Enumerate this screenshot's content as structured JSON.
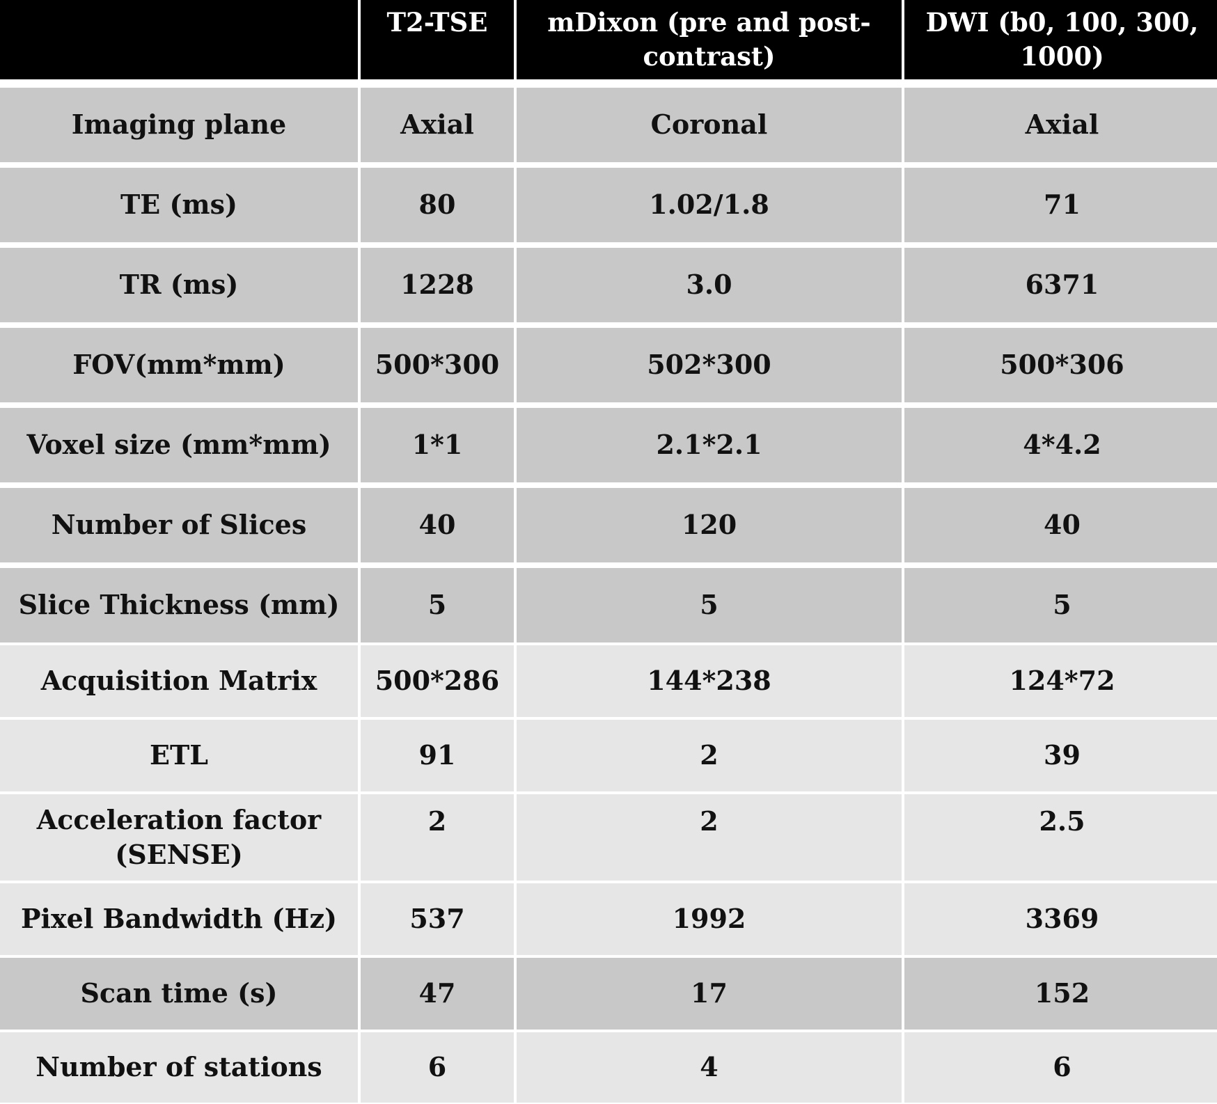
{
  "table": {
    "headers": [
      "",
      "T2-TSE",
      "mDixon (pre and post-contrast)",
      "DWI (b0, 100, 300, 1000)"
    ],
    "rows": [
      {
        "label": "Imaging plane",
        "values": [
          "Axial",
          "Coronal",
          "Axial"
        ],
        "shade": "dark"
      },
      {
        "label": "TE (ms)",
        "values": [
          "80",
          "1.02/1.8",
          "71"
        ],
        "shade": "dark"
      },
      {
        "label": "TR (ms)",
        "values": [
          "1228",
          "3.0",
          "6371"
        ],
        "shade": "dark"
      },
      {
        "label": "FOV(mm*mm)",
        "values": [
          "500*300",
          "502*300",
          "500*306"
        ],
        "shade": "dark"
      },
      {
        "label": "Voxel size (mm*mm)",
        "values": [
          "1*1",
          "2.1*2.1",
          "4*4.2"
        ],
        "shade": "dark"
      },
      {
        "label": "Number of Slices",
        "values": [
          "40",
          "120",
          "40"
        ],
        "shade": "dark"
      },
      {
        "label": "Slice Thickness (mm)",
        "values": [
          "5",
          "5",
          "5"
        ],
        "shade": "dark"
      },
      {
        "label": "Acquisition Matrix",
        "values": [
          "500*286",
          "144*238",
          "124*72"
        ],
        "shade": "light"
      },
      {
        "label": "ETL",
        "values": [
          "91",
          "2",
          "39"
        ],
        "shade": "light"
      },
      {
        "label": "Acceleration factor (SENSE)",
        "values": [
          "2",
          "2",
          "2.5"
        ],
        "shade": "light"
      },
      {
        "label": "Pixel Bandwidth (Hz)",
        "values": [
          "537",
          "1992",
          "3369"
        ],
        "shade": "light"
      },
      {
        "label": "Scan time (s)",
        "values": [
          "47",
          "17",
          "152"
        ],
        "shade": "dark"
      },
      {
        "label": "Number of stations",
        "values": [
          "6",
          "4",
          "6"
        ],
        "shade": "light"
      }
    ]
  },
  "colors": {
    "header_bg": "#000000",
    "header_text": "#ffffff",
    "row_dark": "#c8c8c8",
    "row_light": "#e6e6e6",
    "separator": "#ffffff"
  }
}
